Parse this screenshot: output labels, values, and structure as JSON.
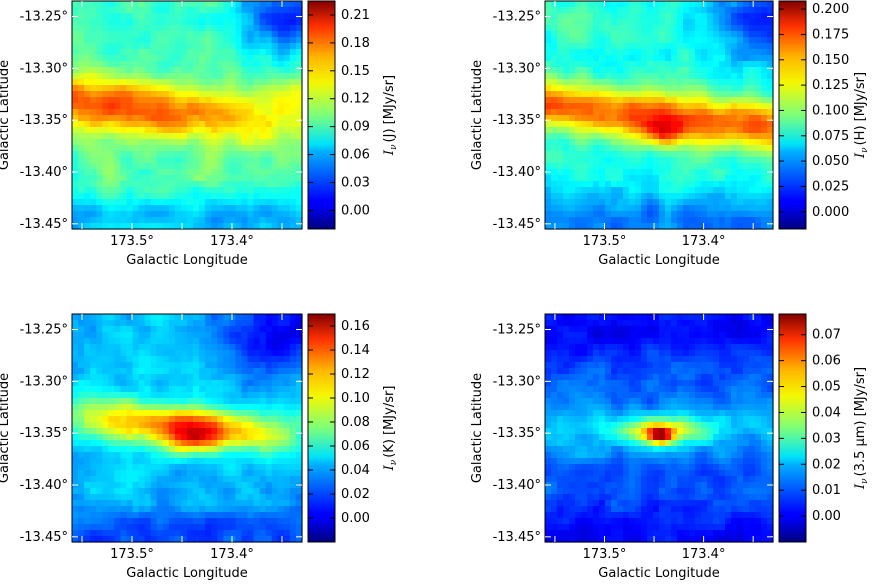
{
  "chart_data": [
    {
      "type": "heatmap",
      "band": "J",
      "xlabel": "Galactic Longitude",
      "ylabel": "Galactic Latitude",
      "xticks": [
        "173.5°",
        "173.4°"
      ],
      "yticks": [
        "-13.25°",
        "-13.30°",
        "-13.35°",
        "-13.40°",
        "-13.45°"
      ],
      "xlim": [
        173.56,
        173.33
      ],
      "ylim": [
        -13.455,
        -13.235
      ],
      "colorbar_label_pre": "I",
      "colorbar_label_sub": "ν",
      "colorbar_label_post": "(J) [MJy/sr]",
      "colorbar_ticks": [
        "0.21",
        "0.18",
        "0.15",
        "0.12",
        "0.09",
        "0.06",
        "0.03",
        "0.00"
      ],
      "colorbar_range": [
        -0.02,
        0.225
      ],
      "peak_value": 0.185,
      "peak_location": [
        173.43,
        -13.352
      ]
    },
    {
      "type": "heatmap",
      "band": "H",
      "xlabel": "Galactic Longitude",
      "ylabel": "Galactic Latitude",
      "xticks": [
        "173.5°",
        "173.4°"
      ],
      "yticks": [
        "-13.25°",
        "-13.30°",
        "-13.35°",
        "-13.40°",
        "-13.45°"
      ],
      "xlim": [
        173.56,
        173.33
      ],
      "ylim": [
        -13.455,
        -13.235
      ],
      "colorbar_label_pre": "I",
      "colorbar_label_sub": "ν",
      "colorbar_label_post": "(H) [MJy/sr]",
      "colorbar_ticks": [
        "0.200",
        "0.175",
        "0.150",
        "0.125",
        "0.100",
        "0.075",
        "0.050",
        "0.025",
        "0.000"
      ],
      "colorbar_range": [
        -0.017,
        0.208
      ],
      "peak_value": 0.2,
      "peak_location": [
        173.44,
        -13.362
      ]
    },
    {
      "type": "heatmap",
      "band": "K",
      "xlabel": "Galactic Longitude",
      "ylabel": "Galactic Latitude",
      "xticks": [
        "173.5°",
        "173.4°"
      ],
      "yticks": [
        "-13.25°",
        "-13.30°",
        "-13.35°",
        "-13.40°",
        "-13.45°"
      ],
      "xlim": [
        173.56,
        173.33
      ],
      "ylim": [
        -13.455,
        -13.235
      ],
      "colorbar_label_pre": "I",
      "colorbar_label_sub": "ν",
      "colorbar_label_post": "(K) [MJy/sr]",
      "colorbar_ticks": [
        "0.16",
        "0.14",
        "0.12",
        "0.10",
        "0.08",
        "0.06",
        "0.04",
        "0.02",
        "0.00"
      ],
      "colorbar_range": [
        -0.02,
        0.17
      ],
      "peak_value": 0.16,
      "peak_location": [
        173.44,
        -13.357
      ]
    },
    {
      "type": "heatmap",
      "band": "3.5 μm",
      "xlabel": "Galactic Longitude",
      "ylabel": "Galactic Latitude",
      "xticks": [
        "173.5°",
        "173.4°"
      ],
      "yticks": [
        "-13.25°",
        "-13.30°",
        "-13.35°",
        "-13.40°",
        "-13.45°"
      ],
      "xlim": [
        173.56,
        173.33
      ],
      "ylim": [
        -13.455,
        -13.235
      ],
      "colorbar_label_pre": "I",
      "colorbar_label_sub": "ν",
      "colorbar_label_post": "(3.5 μm) [MJy/sr]",
      "colorbar_ticks": [
        "0.07",
        "0.06",
        "0.05",
        "0.04",
        "0.03",
        "0.02",
        "0.01",
        "0.00"
      ],
      "colorbar_range": [
        -0.01,
        0.078
      ],
      "peak_value": 0.072,
      "peak_location": [
        173.443,
        -13.353
      ]
    }
  ]
}
